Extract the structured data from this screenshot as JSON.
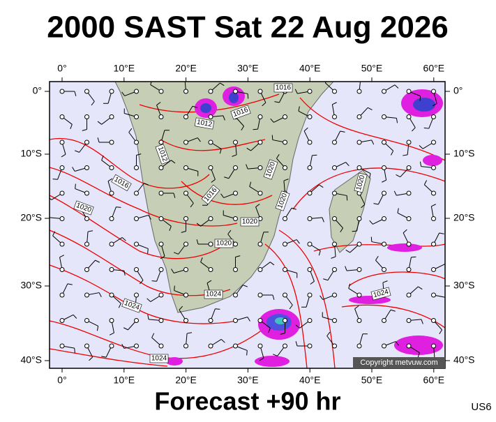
{
  "title": "2000 SAST Sat 22 Aug 2026",
  "footer": "Forecast +90 hr",
  "region_code": "US6",
  "copyright": "Copyright metvuw.com",
  "map": {
    "longitude_labels": [
      "0°",
      "10°E",
      "20°E",
      "30°E",
      "40°E",
      "50°E",
      "60°E"
    ],
    "latitude_labels": [
      "0°",
      "10°S",
      "20°S",
      "30°S",
      "40°S"
    ],
    "isobar_labels": [
      "1016",
      "1012",
      "1016",
      "1012",
      "1016",
      "1020",
      "1016",
      "1020",
      "1020",
      "1020",
      "1020",
      "1020",
      "1024",
      "1024",
      "1024",
      "1024"
    ]
  }
}
